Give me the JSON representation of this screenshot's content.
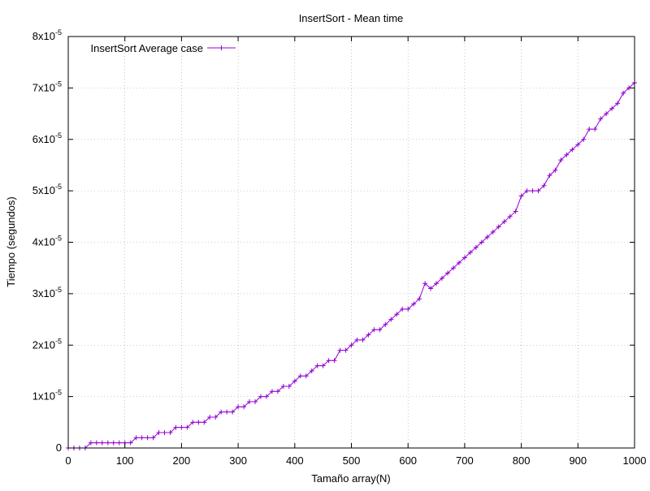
{
  "chart_data": {
    "type": "line",
    "title": "InsertSort - Mean time",
    "xlabel": "Tamaño array(N)",
    "ylabel": "Tiempo (segundos)",
    "xlim": [
      0,
      1000
    ],
    "ylim": [
      0,
      8e-05
    ],
    "x_ticks": [
      0,
      100,
      200,
      300,
      400,
      500,
      600,
      700,
      800,
      900,
      1000
    ],
    "x_tick_labels": [
      "0",
      "100",
      "200",
      "300",
      "400",
      "500",
      "600",
      "700",
      "800",
      "900",
      "1000"
    ],
    "y_ticks": [
      0,
      1e-05,
      2e-05,
      3e-05,
      4e-05,
      5e-05,
      6e-05,
      7e-05,
      8e-05
    ],
    "y_tick_labels": [
      {
        "mantissa": "0",
        "exponent": ""
      },
      {
        "mantissa": "1x10",
        "exponent": "-5"
      },
      {
        "mantissa": "2x10",
        "exponent": "-5"
      },
      {
        "mantissa": "3x10",
        "exponent": "-5"
      },
      {
        "mantissa": "4x10",
        "exponent": "-5"
      },
      {
        "mantissa": "5x10",
        "exponent": "-5"
      },
      {
        "mantissa": "6x10",
        "exponent": "-5"
      },
      {
        "mantissa": "7x10",
        "exponent": "-5"
      },
      {
        "mantissa": "8x10",
        "exponent": "-5"
      }
    ],
    "grid": true,
    "legend_position": "top-left",
    "series": [
      {
        "name": "InsertSort Average case",
        "color": "#9400d3",
        "marker": "plus",
        "y_unit_multiplier": 1e-05,
        "x": [
          0,
          10,
          20,
          30,
          40,
          50,
          60,
          70,
          80,
          90,
          100,
          110,
          120,
          130,
          140,
          150,
          160,
          170,
          180,
          190,
          200,
          210,
          220,
          230,
          240,
          250,
          260,
          270,
          280,
          290,
          300,
          310,
          320,
          330,
          340,
          350,
          360,
          370,
          380,
          390,
          400,
          410,
          420,
          430,
          440,
          450,
          460,
          470,
          480,
          490,
          500,
          510,
          520,
          530,
          540,
          550,
          560,
          570,
          580,
          590,
          600,
          610,
          620,
          630,
          640,
          650,
          660,
          670,
          680,
          690,
          700,
          710,
          720,
          730,
          740,
          750,
          760,
          770,
          780,
          790,
          800,
          810,
          820,
          830,
          840,
          850,
          860,
          870,
          880,
          890,
          900,
          910,
          920,
          930,
          940,
          950,
          960,
          970,
          980,
          990,
          1000
        ],
        "y_scaled": [
          0,
          0,
          0,
          0,
          0.1,
          0.1,
          0.1,
          0.1,
          0.1,
          0.1,
          0.1,
          0.1,
          0.2,
          0.2,
          0.2,
          0.2,
          0.3,
          0.3,
          0.3,
          0.4,
          0.4,
          0.4,
          0.5,
          0.5,
          0.5,
          0.6,
          0.6,
          0.7,
          0.7,
          0.7,
          0.8,
          0.8,
          0.9,
          0.9,
          1.0,
          1.0,
          1.1,
          1.1,
          1.2,
          1.2,
          1.3,
          1.4,
          1.4,
          1.5,
          1.6,
          1.6,
          1.7,
          1.7,
          1.9,
          1.9,
          2.0,
          2.1,
          2.1,
          2.2,
          2.3,
          2.3,
          2.4,
          2.5,
          2.6,
          2.7,
          2.7,
          2.8,
          2.9,
          3.2,
          3.1,
          3.2,
          3.3,
          3.4,
          3.5,
          3.6,
          3.7,
          3.8,
          3.9,
          4.0,
          4.1,
          4.2,
          4.3,
          4.4,
          4.5,
          4.6,
          4.9,
          5.0,
          5.0,
          5.0,
          5.1,
          5.3,
          5.4,
          5.6,
          5.7,
          5.8,
          5.9,
          6.0,
          6.2,
          6.2,
          6.4,
          6.5,
          6.6,
          6.7,
          6.9,
          7.0,
          7.1
        ]
      }
    ]
  }
}
